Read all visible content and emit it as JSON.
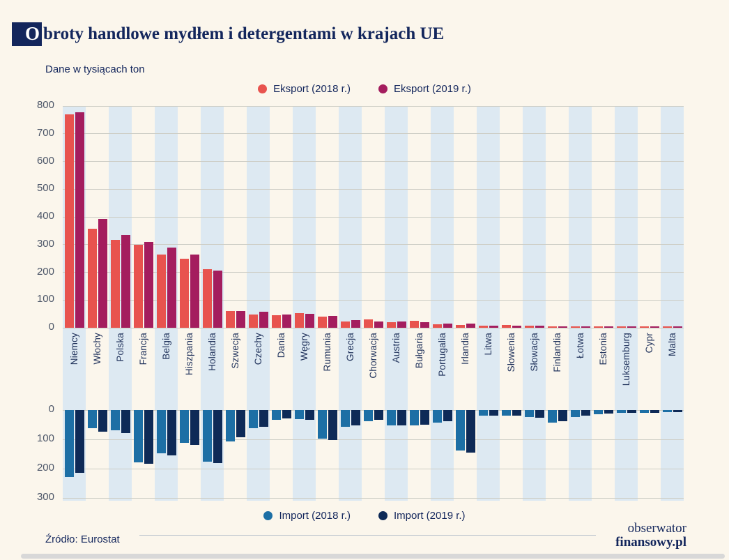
{
  "header": {
    "initial": "O",
    "title_rest": "broty handlowe mydłem i detergentami w krajach UE"
  },
  "chart_data": {
    "type": "bar",
    "title": "Obroty handlowe mydłem i detergentami w krajach UE",
    "subtitle": "Dane w tysiącach ton",
    "unit": "tysiące ton",
    "source": "Źródło: Eurostat",
    "grid": true,
    "legend_position": {
      "export_legend": "top",
      "import_legend": "bottom"
    },
    "categories": [
      "Niemcy",
      "Włochy",
      "Polska",
      "Francja",
      "Belgia",
      "Hiszpania",
      "Holandia",
      "Szwecja",
      "Czechy",
      "Dania",
      "Węgry",
      "Rumunia",
      "Grecja",
      "Chorwacja",
      "Austria",
      "Bułgaria",
      "Portugalia",
      "Irlandia",
      "Litwa",
      "Słowenia",
      "Słowacja",
      "Finlandia",
      "Łotwa",
      "Estonia",
      "Luksemburg",
      "Cypr",
      "Malta"
    ],
    "series": [
      {
        "name": "Eksport (2018 r.)",
        "color": "#e8534e",
        "direction": "up",
        "values": [
          770,
          358,
          318,
          300,
          263,
          250,
          211,
          60,
          48,
          46,
          53,
          40,
          23,
          30,
          21,
          24,
          13,
          11,
          8,
          9,
          7,
          5,
          5,
          2,
          4,
          1,
          1
        ]
      },
      {
        "name": "Eksport (2019 r.)",
        "color": "#a41d5e",
        "direction": "up",
        "values": [
          778,
          392,
          335,
          309,
          290,
          264,
          207,
          61,
          58,
          49,
          50,
          43,
          27,
          23,
          22,
          21,
          14,
          16,
          7,
          7,
          8,
          5,
          6,
          2,
          1,
          1,
          1
        ]
      },
      {
        "name": "Import (2018 r.)",
        "color": "#1d6fa5",
        "direction": "down",
        "values": [
          228,
          62,
          70,
          178,
          148,
          113,
          176,
          108,
          63,
          33,
          30,
          98,
          57,
          38,
          52,
          53,
          44,
          137,
          20,
          19,
          24,
          43,
          24,
          14,
          9,
          10,
          7
        ]
      },
      {
        "name": "Import (2019 r.)",
        "color": "#0e2a57",
        "direction": "down",
        "values": [
          214,
          73,
          79,
          184,
          154,
          118,
          181,
          94,
          58,
          29,
          34,
          103,
          52,
          33,
          53,
          49,
          39,
          146,
          20,
          18,
          25,
          38,
          19,
          13,
          9,
          10,
          7
        ]
      }
    ],
    "export_axis": {
      "ticks": [
        800,
        700,
        600,
        500,
        400,
        300,
        200,
        100,
        0
      ],
      "max": 800
    },
    "import_axis": {
      "ticks": [
        0,
        100,
        200,
        300
      ],
      "max": 300
    }
  },
  "footer": {
    "logo_line1": "obserwator",
    "logo_line2": "finansowy.pl"
  },
  "colors": {
    "background": "#fbf6ec",
    "stripe": "#dde9f2",
    "navy_text": "#13265c",
    "gridline": "#cdcdc5"
  }
}
